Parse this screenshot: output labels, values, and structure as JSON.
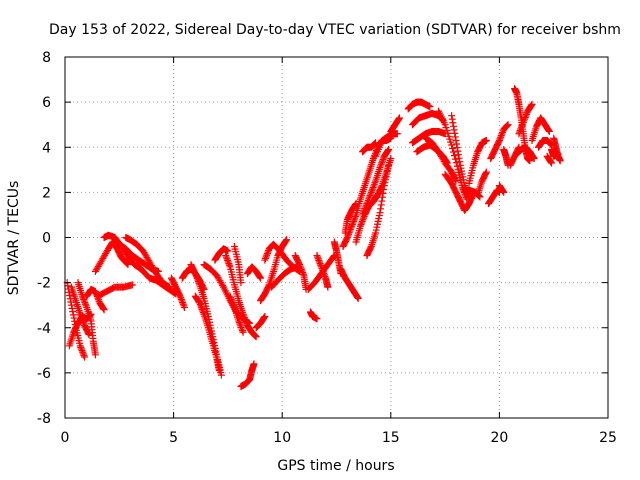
{
  "chart_data": {
    "type": "scatter",
    "title": "Day 153 of 2022, Sidereal Day-to-day VTEC variation (SDTVAR) for receiver bshm",
    "xlabel": "GPS time / hours",
    "ylabel": "SDTVAR / TECUs",
    "xlim": [
      0,
      25
    ],
    "ylim": [
      -8,
      8
    ],
    "xticks": [
      "0",
      "5",
      "10",
      "15",
      "20",
      "25"
    ],
    "yticks": [
      "-8",
      "-6",
      "-4",
      "-2",
      "0",
      "2",
      "4",
      "6",
      "8"
    ],
    "grid": true,
    "marker": "plus",
    "color": "#ff0000",
    "tracks": [
      [
        [
          0.1,
          -2.0
        ],
        [
          0.3,
          -3.0
        ],
        [
          0.5,
          -4.0
        ],
        [
          0.7,
          -4.8
        ],
        [
          0.9,
          -5.3
        ]
      ],
      [
        [
          0.2,
          -4.8
        ],
        [
          0.4,
          -4.2
        ],
        [
          0.6,
          -3.8
        ],
        [
          0.8,
          -3.5
        ],
        [
          1.0,
          -3.6
        ],
        [
          1.2,
          -3.4
        ]
      ],
      [
        [
          0.3,
          -2.2
        ],
        [
          0.5,
          -2.8
        ],
        [
          0.7,
          -3.4
        ],
        [
          0.9,
          -3.9
        ],
        [
          1.1,
          -4.3
        ]
      ],
      [
        [
          0.6,
          -2.0
        ],
        [
          0.8,
          -2.6
        ],
        [
          1.0,
          -3.1
        ],
        [
          1.2,
          -3.7
        ],
        [
          1.3,
          -4.6
        ],
        [
          1.4,
          -5.2
        ]
      ],
      [
        [
          1.0,
          -2.6
        ],
        [
          1.2,
          -2.3
        ],
        [
          1.4,
          -2.4
        ],
        [
          1.6,
          -2.9
        ],
        [
          1.8,
          -3.2
        ]
      ],
      [
        [
          1.4,
          -1.5
        ],
        [
          1.7,
          -1.0
        ],
        [
          2.0,
          -0.5
        ],
        [
          2.2,
          -0.2
        ],
        [
          2.4,
          -0.5
        ],
        [
          2.6,
          -0.9
        ],
        [
          2.9,
          -1.2
        ]
      ],
      [
        [
          1.5,
          -2.6
        ],
        [
          1.9,
          -2.4
        ],
        [
          2.3,
          -2.2
        ],
        [
          2.7,
          -2.2
        ],
        [
          3.1,
          -2.1
        ]
      ],
      [
        [
          1.8,
          0.0
        ],
        [
          2.0,
          0.1
        ],
        [
          2.3,
          0.0
        ],
        [
          2.6,
          -0.4
        ],
        [
          2.9,
          -0.9
        ],
        [
          3.2,
          -1.2
        ],
        [
          3.5,
          -1.4
        ]
      ],
      [
        [
          2.5,
          -0.3
        ],
        [
          2.8,
          -0.5
        ],
        [
          3.1,
          -0.8
        ],
        [
          3.4,
          -1.0
        ],
        [
          3.7,
          -1.2
        ],
        [
          4.0,
          -1.4
        ],
        [
          4.3,
          -1.5
        ]
      ],
      [
        [
          2.8,
          0.0
        ],
        [
          3.0,
          -0.1
        ],
        [
          3.3,
          -0.3
        ],
        [
          3.6,
          -0.6
        ],
        [
          3.9,
          -1.1
        ],
        [
          4.2,
          -1.6
        ],
        [
          4.5,
          -2.0
        ],
        [
          4.8,
          -2.2
        ]
      ],
      [
        [
          3.3,
          -1.2
        ],
        [
          3.6,
          -1.5
        ],
        [
          3.9,
          -1.8
        ],
        [
          4.2,
          -1.9
        ],
        [
          4.5,
          -2.1
        ],
        [
          4.8,
          -2.3
        ],
        [
          5.1,
          -2.5
        ]
      ],
      [
        [
          4.9,
          -1.8
        ],
        [
          5.1,
          -2.2
        ],
        [
          5.3,
          -2.6
        ],
        [
          5.5,
          -3.1
        ]
      ],
      [
        [
          5.4,
          -1.8
        ],
        [
          5.6,
          -1.5
        ],
        [
          5.8,
          -1.4
        ],
        [
          6.0,
          -1.6
        ],
        [
          6.2,
          -1.9
        ],
        [
          6.4,
          -2.3
        ]
      ],
      [
        [
          5.8,
          -1.2
        ],
        [
          6.0,
          -1.6
        ],
        [
          6.2,
          -2.1
        ],
        [
          6.4,
          -2.7
        ],
        [
          6.6,
          -3.5
        ],
        [
          6.8,
          -4.4
        ],
        [
          7.0,
          -5.3
        ],
        [
          7.2,
          -6.1
        ]
      ],
      [
        [
          6.0,
          -2.6
        ],
        [
          6.2,
          -2.9
        ],
        [
          6.4,
          -3.4
        ],
        [
          6.6,
          -4.0
        ],
        [
          6.8,
          -4.7
        ],
        [
          7.0,
          -5.4
        ],
        [
          7.1,
          -5.9
        ]
      ],
      [
        [
          6.4,
          -1.2
        ],
        [
          6.7,
          -1.4
        ],
        [
          7.0,
          -1.7
        ],
        [
          7.3,
          -2.2
        ],
        [
          7.6,
          -2.8
        ],
        [
          7.9,
          -3.3
        ],
        [
          8.2,
          -3.6
        ],
        [
          8.5,
          -3.8
        ]
      ],
      [
        [
          6.9,
          -1.0
        ],
        [
          7.1,
          -0.7
        ],
        [
          7.3,
          -0.5
        ],
        [
          7.5,
          -0.6
        ]
      ],
      [
        [
          7.4,
          -0.8
        ],
        [
          7.6,
          -1.3
        ],
        [
          7.8,
          -2.1
        ],
        [
          8.0,
          -2.8
        ],
        [
          8.2,
          -3.4
        ],
        [
          8.4,
          -3.9
        ],
        [
          8.6,
          -4.2
        ],
        [
          8.8,
          -4.4
        ]
      ],
      [
        [
          7.6,
          -2.6
        ],
        [
          7.8,
          -3.1
        ],
        [
          8.0,
          -3.7
        ],
        [
          8.2,
          -4.2
        ]
      ],
      [
        [
          7.8,
          -0.4
        ],
        [
          8.0,
          -1.2
        ],
        [
          8.1,
          -2.0
        ]
      ],
      [
        [
          8.1,
          -6.6
        ],
        [
          8.3,
          -6.5
        ],
        [
          8.5,
          -6.3
        ],
        [
          8.6,
          -5.9
        ],
        [
          8.7,
          -5.6
        ]
      ],
      [
        [
          8.8,
          -4.0
        ],
        [
          9.0,
          -3.8
        ],
        [
          9.2,
          -3.5
        ]
      ],
      [
        [
          8.4,
          -1.6
        ],
        [
          8.6,
          -1.3
        ],
        [
          8.8,
          -1.5
        ],
        [
          9.0,
          -1.8
        ]
      ],
      [
        [
          9.0,
          -2.8
        ],
        [
          9.2,
          -2.5
        ],
        [
          9.4,
          -2.1
        ],
        [
          9.6,
          -1.5
        ],
        [
          9.8,
          -0.8
        ],
        [
          10.0,
          -0.4
        ],
        [
          10.2,
          -0.1
        ]
      ],
      [
        [
          9.2,
          -1.0
        ],
        [
          9.4,
          -0.5
        ],
        [
          9.6,
          -0.3
        ],
        [
          9.9,
          -0.6
        ],
        [
          10.2,
          -1.0
        ],
        [
          10.5,
          -1.3
        ],
        [
          10.8,
          -1.5
        ]
      ],
      [
        [
          9.5,
          -2.2
        ],
        [
          9.8,
          -1.9
        ],
        [
          10.1,
          -1.6
        ],
        [
          10.4,
          -1.4
        ],
        [
          10.7,
          -1.3
        ]
      ],
      [
        [
          10.6,
          -0.8
        ],
        [
          10.8,
          -1.2
        ],
        [
          11.0,
          -1.7
        ],
        [
          11.1,
          -2.3
        ]
      ],
      [
        [
          11.3,
          -3.3
        ],
        [
          11.4,
          -3.5
        ],
        [
          11.6,
          -3.6
        ]
      ],
      [
        [
          11.2,
          -2.3
        ],
        [
          11.5,
          -2.0
        ],
        [
          11.8,
          -1.6
        ],
        [
          12.1,
          -1.2
        ],
        [
          12.4,
          -0.8
        ]
      ],
      [
        [
          11.6,
          -0.8
        ],
        [
          11.8,
          -1.3
        ],
        [
          12.0,
          -1.8
        ],
        [
          12.1,
          -2.2
        ]
      ],
      [
        [
          12.4,
          -0.2
        ],
        [
          12.5,
          -0.6
        ],
        [
          12.6,
          -1.1
        ],
        [
          12.7,
          -1.6
        ]
      ],
      [
        [
          12.7,
          -1.4
        ],
        [
          12.9,
          -1.8
        ],
        [
          13.1,
          -2.1
        ],
        [
          13.3,
          -2.4
        ],
        [
          13.5,
          -2.7
        ]
      ],
      [
        [
          12.8,
          -0.4
        ],
        [
          13.0,
          0.0
        ],
        [
          13.2,
          0.5
        ],
        [
          13.4,
          1.0
        ],
        [
          13.6,
          1.7
        ],
        [
          13.8,
          2.3
        ],
        [
          14.0,
          2.9
        ],
        [
          14.2,
          3.5
        ],
        [
          14.4,
          4.0
        ],
        [
          14.6,
          4.3
        ],
        [
          14.8,
          4.3
        ],
        [
          15.0,
          4.4
        ]
      ],
      [
        [
          12.9,
          0.2
        ],
        [
          13.0,
          0.8
        ],
        [
          13.2,
          1.2
        ],
        [
          13.4,
          1.5
        ]
      ],
      [
        [
          13.4,
          -0.2
        ],
        [
          13.6,
          0.5
        ],
        [
          13.8,
          1.0
        ],
        [
          14.0,
          1.4
        ],
        [
          14.2,
          1.6
        ],
        [
          14.4,
          1.9
        ],
        [
          14.6,
          2.3
        ],
        [
          14.8,
          2.9
        ],
        [
          15.0,
          3.5
        ]
      ],
      [
        [
          13.7,
          1.0
        ],
        [
          13.9,
          1.5
        ],
        [
          14.1,
          2.0
        ],
        [
          14.3,
          2.5
        ],
        [
          14.5,
          3.1
        ],
        [
          14.7,
          3.6
        ],
        [
          14.9,
          3.9
        ]
      ],
      [
        [
          13.9,
          -0.8
        ],
        [
          14.1,
          -0.4
        ],
        [
          14.3,
          0.2
        ],
        [
          14.5,
          1.1
        ],
        [
          14.7,
          2.3
        ],
        [
          14.9,
          3.2
        ]
      ],
      [
        [
          13.7,
          3.8
        ],
        [
          13.9,
          4.0
        ],
        [
          14.1,
          4.0
        ],
        [
          14.3,
          4.2
        ]
      ],
      [
        [
          14.3,
          3.6
        ],
        [
          14.6,
          4.3
        ],
        [
          14.9,
          4.5
        ],
        [
          15.1,
          4.6
        ],
        [
          15.3,
          4.6
        ]
      ],
      [
        [
          15.0,
          4.7
        ],
        [
          15.2,
          5.0
        ],
        [
          15.4,
          5.3
        ]
      ],
      [
        [
          15.8,
          5.7
        ],
        [
          16.0,
          5.9
        ],
        [
          16.2,
          6.0
        ],
        [
          16.4,
          6.0
        ],
        [
          16.6,
          5.9
        ],
        [
          16.8,
          5.8
        ]
      ],
      [
        [
          16.0,
          5.0
        ],
        [
          16.3,
          5.3
        ],
        [
          16.6,
          5.4
        ],
        [
          16.9,
          5.5
        ],
        [
          17.2,
          5.4
        ],
        [
          17.4,
          5.2
        ]
      ],
      [
        [
          16.0,
          4.2
        ],
        [
          16.3,
          4.4
        ],
        [
          16.6,
          4.6
        ],
        [
          16.9,
          4.7
        ],
        [
          17.2,
          4.7
        ],
        [
          17.5,
          4.6
        ]
      ],
      [
        [
          16.2,
          3.8
        ],
        [
          16.5,
          4.0
        ],
        [
          16.8,
          4.1
        ],
        [
          17.1,
          3.9
        ],
        [
          17.4,
          3.6
        ],
        [
          17.6,
          3.3
        ]
      ],
      [
        [
          16.6,
          4.4
        ],
        [
          16.9,
          4.2
        ],
        [
          17.2,
          3.8
        ],
        [
          17.5,
          3.3
        ],
        [
          17.8,
          2.9
        ],
        [
          18.0,
          2.5
        ]
      ],
      [
        [
          17.2,
          5.6
        ],
        [
          17.5,
          5.0
        ],
        [
          17.8,
          4.1
        ],
        [
          18.1,
          3.0
        ],
        [
          18.3,
          2.2
        ],
        [
          18.5,
          1.7
        ]
      ],
      [
        [
          17.8,
          5.4
        ],
        [
          18.0,
          4.3
        ],
        [
          18.2,
          3.2
        ],
        [
          18.4,
          2.3
        ],
        [
          18.6,
          1.8
        ]
      ],
      [
        [
          17.5,
          2.8
        ],
        [
          17.8,
          2.4
        ],
        [
          18.0,
          2.0
        ],
        [
          18.2,
          1.6
        ],
        [
          18.4,
          1.2
        ],
        [
          18.6,
          1.5
        ],
        [
          18.8,
          1.9
        ]
      ],
      [
        [
          18.4,
          2.0
        ],
        [
          18.6,
          2.1
        ],
        [
          18.9,
          2.0
        ],
        [
          19.1,
          1.8
        ]
      ],
      [
        [
          18.6,
          2.4
        ],
        [
          18.8,
          3.2
        ],
        [
          19.0,
          3.8
        ],
        [
          19.2,
          4.2
        ],
        [
          19.4,
          4.3
        ]
      ],
      [
        [
          19.0,
          1.9
        ],
        [
          19.2,
          2.5
        ],
        [
          19.4,
          2.9
        ]
      ],
      [
        [
          19.5,
          1.5
        ],
        [
          19.7,
          1.8
        ],
        [
          19.9,
          2.1
        ],
        [
          20.0,
          2.0
        ]
      ],
      [
        [
          19.6,
          3.5
        ],
        [
          19.8,
          3.9
        ],
        [
          20.0,
          4.3
        ],
        [
          20.2,
          4.8
        ],
        [
          20.4,
          5.0
        ]
      ],
      [
        [
          20.2,
          3.9
        ],
        [
          20.3,
          3.6
        ],
        [
          20.4,
          3.2
        ]
      ],
      [
        [
          20.0,
          2.3
        ],
        [
          20.2,
          2.0
        ]
      ],
      [
        [
          20.5,
          3.2
        ],
        [
          20.7,
          3.6
        ],
        [
          20.9,
          4.0
        ]
      ],
      [
        [
          20.7,
          6.6
        ],
        [
          20.8,
          6.4
        ],
        [
          20.9,
          5.9
        ],
        [
          21.0,
          5.3
        ],
        [
          21.1,
          4.6
        ],
        [
          21.2,
          3.9
        ],
        [
          21.3,
          3.5
        ],
        [
          21.4,
          3.4
        ]
      ],
      [
        [
          20.8,
          3.7
        ],
        [
          21.0,
          3.9
        ],
        [
          21.2,
          4.0
        ],
        [
          21.4,
          3.8
        ],
        [
          21.6,
          3.5
        ]
      ],
      [
        [
          20.9,
          4.6
        ],
        [
          21.1,
          5.1
        ],
        [
          21.3,
          5.6
        ],
        [
          21.5,
          5.9
        ]
      ],
      [
        [
          21.5,
          4.3
        ],
        [
          21.7,
          4.9
        ],
        [
          21.9,
          5.3
        ],
        [
          22.1,
          5.0
        ],
        [
          22.3,
          4.7
        ]
      ],
      [
        [
          21.8,
          4.0
        ],
        [
          22.0,
          4.3
        ],
        [
          22.2,
          4.3
        ],
        [
          22.4,
          4.1
        ]
      ],
      [
        [
          22.2,
          3.6
        ],
        [
          22.4,
          3.3
        ]
      ],
      [
        [
          22.5,
          4.4
        ],
        [
          22.6,
          4.0
        ],
        [
          22.7,
          3.6
        ],
        [
          22.8,
          3.4
        ]
      ],
      [
        [
          22.4,
          3.9
        ],
        [
          22.5,
          3.6
        ],
        [
          22.7,
          3.7
        ]
      ]
    ]
  }
}
